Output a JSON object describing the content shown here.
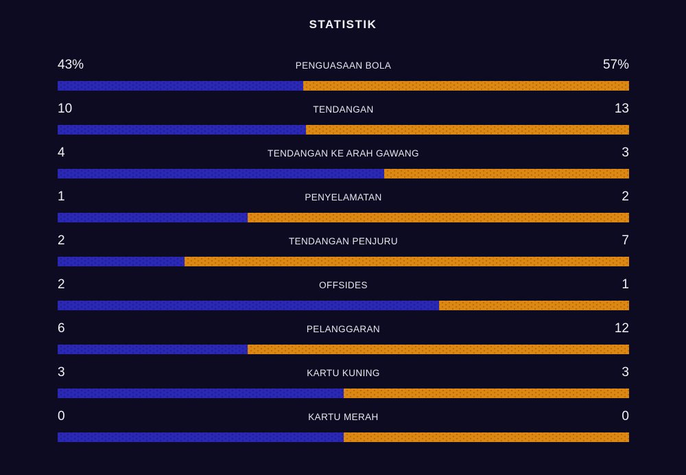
{
  "title": "STATISTIK",
  "colors": {
    "background": "#0d0b21",
    "home_bar": "#2a28b4",
    "away_bar": "#dd8813",
    "text": "#f2f1f6"
  },
  "chart_data": {
    "type": "bar",
    "subtype": "split-comparison-horizontal",
    "title": "STATISTIK",
    "legend_position": "none",
    "grid": false,
    "series": [
      {
        "name": "home",
        "color": "#2a28b4"
      },
      {
        "name": "away",
        "color": "#dd8813"
      }
    ],
    "rows": [
      {
        "label": "PENGUASAAN BOLA",
        "home": "43%",
        "away": "57%",
        "home_pct": 43.0
      },
      {
        "label": "TENDANGAN",
        "home": "10",
        "away": "13",
        "home_pct": 43.5
      },
      {
        "label": "TENDANGAN KE ARAH GAWANG",
        "home": "4",
        "away": "3",
        "home_pct": 57.1
      },
      {
        "label": "PENYELAMATAN",
        "home": "1",
        "away": "2",
        "home_pct": 33.3
      },
      {
        "label": "TENDANGAN PENJURU",
        "home": "2",
        "away": "7",
        "home_pct": 22.2
      },
      {
        "label": "OFFSIDES",
        "home": "2",
        "away": "1",
        "home_pct": 66.7
      },
      {
        "label": "PELANGGARAN",
        "home": "6",
        "away": "12",
        "home_pct": 33.3
      },
      {
        "label": "KARTU KUNING",
        "home": "3",
        "away": "3",
        "home_pct": 50.0
      },
      {
        "label": "KARTU MERAH",
        "home": "0",
        "away": "0",
        "home_pct": 50.0
      }
    ]
  }
}
